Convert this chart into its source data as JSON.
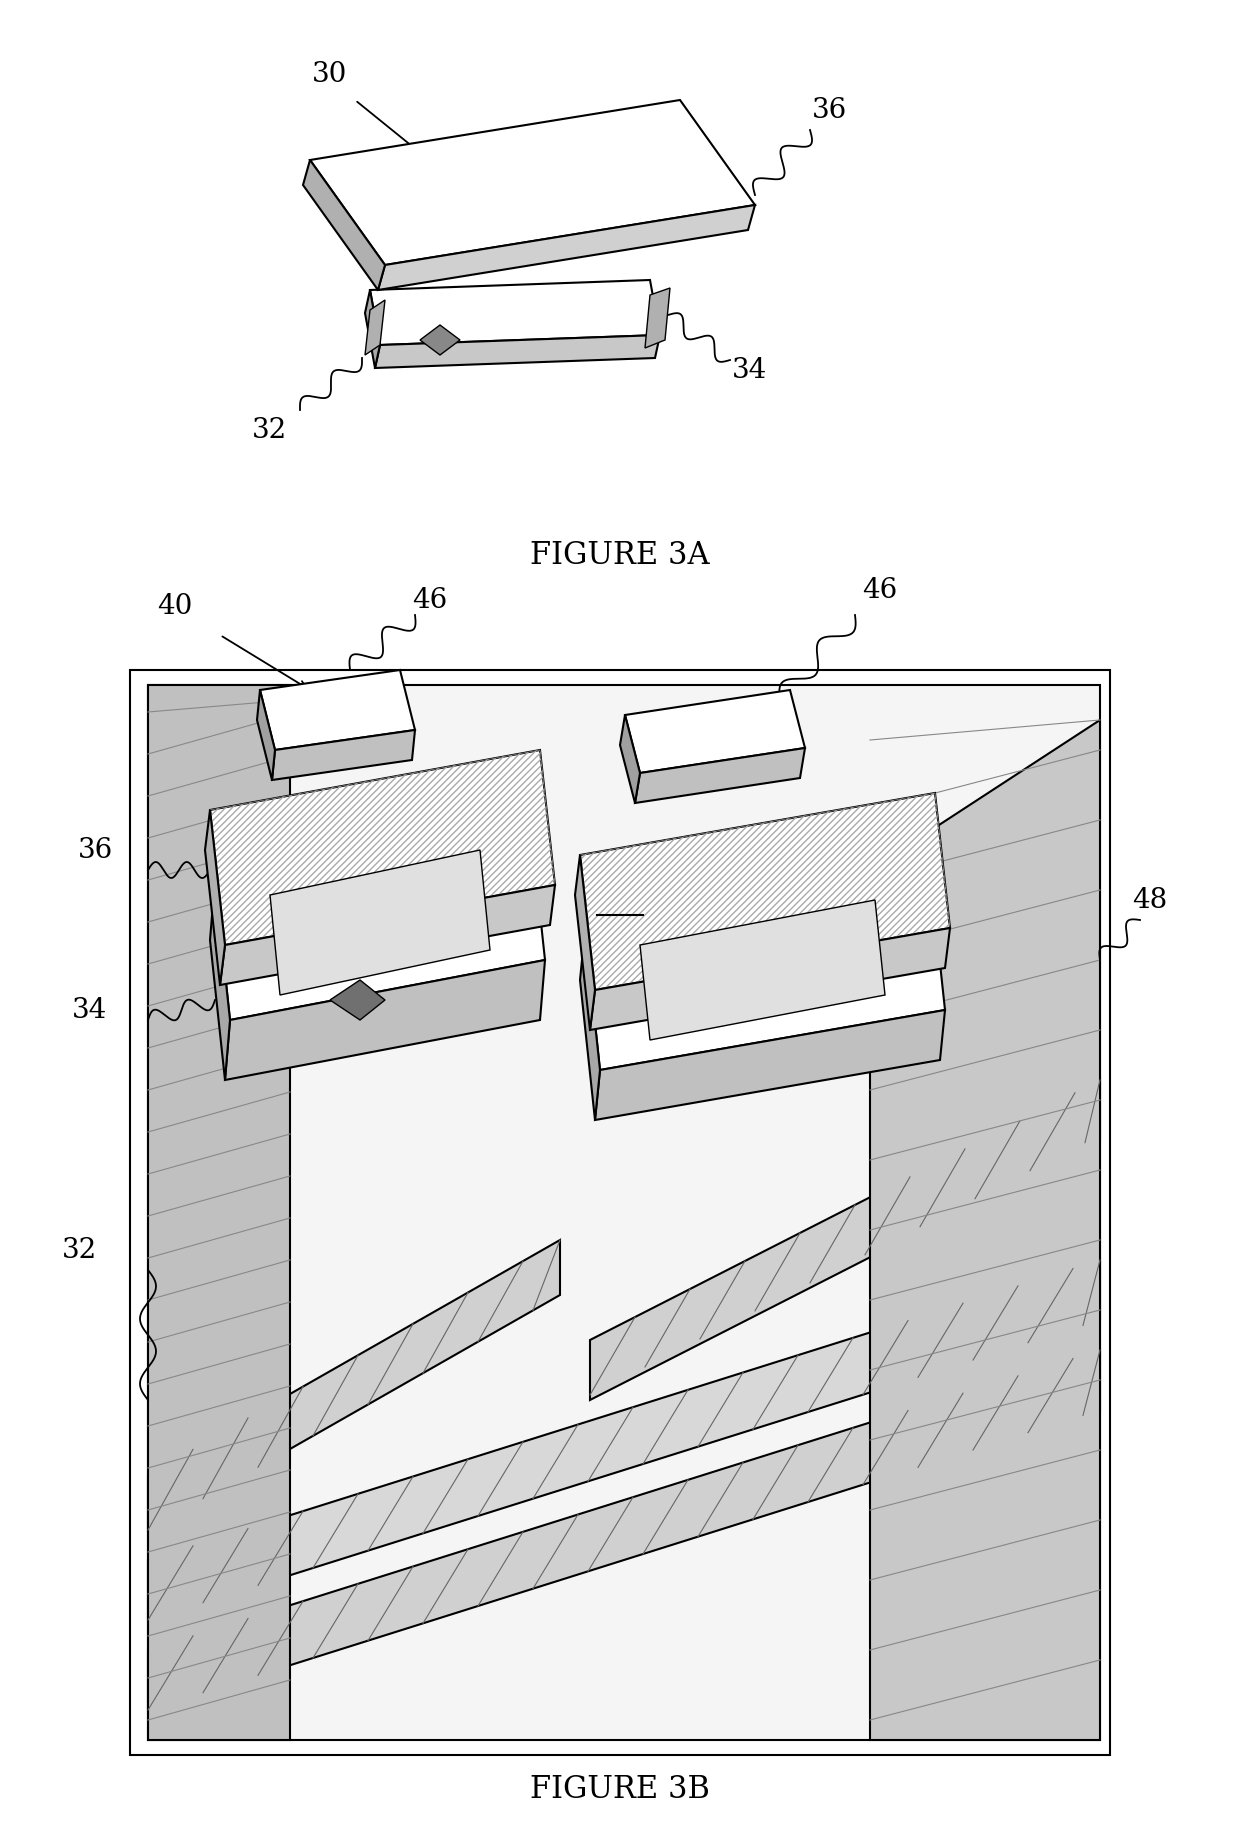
{
  "bg_color": "#ffffff",
  "fig_width": 12.4,
  "fig_height": 18.29,
  "figure_3a_label": "FIGURE 3A",
  "figure_3b_label": "FIGURE 3B",
  "line_color": "#000000",
  "label_fontsize": 20,
  "caption_fontsize": 22,
  "hatch_color": "#555555",
  "gray_light": "#e8e8e8",
  "gray_mid": "#c0c0c0",
  "gray_dark": "#909090"
}
